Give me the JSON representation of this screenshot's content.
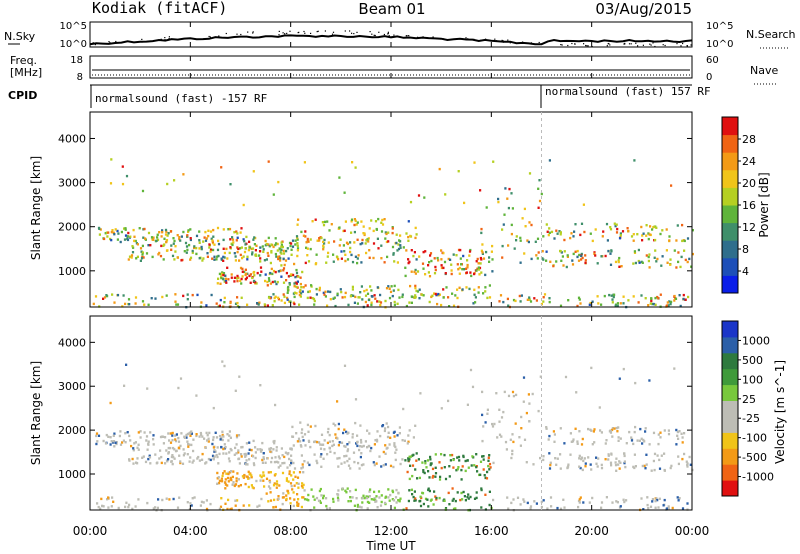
{
  "header": {
    "station": "Kodiak (fitACF)",
    "beam": "Beam 01",
    "date": "03/Aug/2015"
  },
  "noise_panel": {
    "left_label": "N.Sky",
    "right_label": "N.Search",
    "tick_top": "10^5",
    "tick_bottom": "10^0"
  },
  "freq_panel": {
    "left_label_line1": "Freq.",
    "left_label_line2": "[MHz]",
    "right_label": "Nave",
    "left_ticks": [
      "18",
      "8"
    ],
    "right_ticks": [
      "60",
      "0"
    ]
  },
  "cpid_panel": {
    "label": "CPID",
    "modes": [
      {
        "text": "normalsound (fast) -157 RF",
        "start_hour": 0
      },
      {
        "text": "normalsound (fast) 157 RF",
        "start_hour": 18
      }
    ]
  },
  "chart_data": [
    {
      "type": "heatmap",
      "name": "power",
      "ylabel": "Slant Range [km]",
      "yticks": [
        1000,
        2000,
        3000,
        4000
      ],
      "ylim": [
        180,
        4600
      ],
      "xlim": [
        0,
        24
      ],
      "colorbar": {
        "label": "Power [dB]",
        "range": [
          0,
          32
        ],
        "ticks": [
          "4",
          "8",
          "12",
          "16",
          "20",
          "24",
          "28"
        ],
        "colors": [
          "#0a1ee8",
          "#1d4fb8",
          "#2f6e8c",
          "#3f8f6a",
          "#5fb43a",
          "#b5d022",
          "#f0c419",
          "#f39a16",
          "#f06414",
          "#e01010"
        ]
      }
    },
    {
      "type": "heatmap",
      "name": "velocity",
      "ylabel": "Slant Range [km]",
      "yticks": [
        1000,
        2000,
        3000,
        4000
      ],
      "ylim": [
        180,
        4600
      ],
      "xlim": [
        0,
        24
      ],
      "colorbar": {
        "label": "Velocity [m s^-1]",
        "ticks": [
          "1000",
          "500",
          "100",
          "25",
          "-25",
          "-100",
          "-500",
          "-1000"
        ],
        "colors": [
          "#1a35c8",
          "#2b5fa8",
          "#2e7a3e",
          "#3f9a3a",
          "#78c83c",
          "#bdbdb5",
          "#bdbdb5",
          "#f0c419",
          "#f39a16",
          "#f06414",
          "#e01010"
        ]
      }
    }
  ],
  "xaxis": {
    "label": "Time UT",
    "ticks": [
      "00:00",
      "04:00",
      "08:00",
      "12:00",
      "16:00",
      "20:00",
      "00:00"
    ]
  }
}
